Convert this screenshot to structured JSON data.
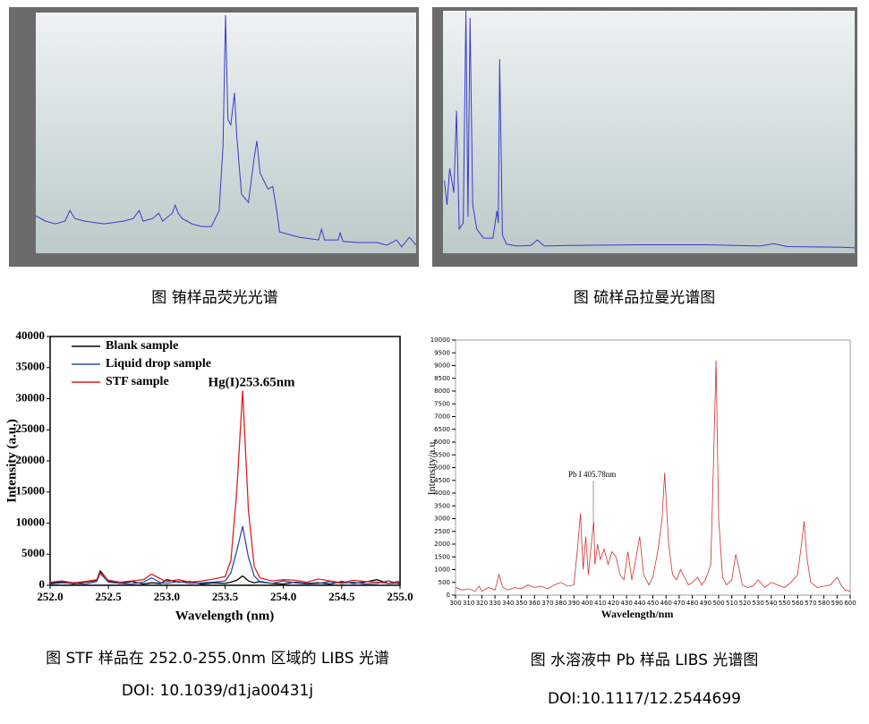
{
  "chart_data": [
    {
      "type": "line",
      "caption": "图 铕样品荧光光谱",
      "x": [
        500,
        600,
        700,
        800,
        850,
        900,
        1000,
        1200,
        1400,
        1500,
        1560,
        1600,
        1700,
        1760,
        1800,
        1900,
        1930,
        1960,
        2000,
        2100,
        2200,
        2300,
        2380,
        2420,
        2445,
        2470,
        2500,
        2537,
        2560,
        2610,
        2680,
        2740,
        2767,
        2800,
        2880,
        2930,
        2970,
        3000,
        3200,
        3400,
        3430,
        3460,
        3600,
        3620,
        3650,
        3800,
        4000,
        4100,
        4200,
        4250,
        4330,
        4400
      ],
      "series": [
        {
          "color": "#3a3acc",
          "values": [
            7000,
            6000,
            5500,
            6000,
            8000,
            6500,
            6000,
            5500,
            6000,
            6500,
            8000,
            6000,
            6500,
            7500,
            6000,
            7500,
            9000,
            7500,
            6500,
            5500,
            5000,
            5000,
            8000,
            20000,
            44500,
            25000,
            24000,
            30000,
            22000,
            11000,
            9500,
            18000,
            21000,
            15000,
            12000,
            12500,
            8000,
            4000,
            3000,
            2500,
            4500,
            2500,
            2500,
            3800,
            2200,
            2000,
            2000,
            1500,
            2500,
            1200,
            3000,
            1500
          ]
        }
      ],
      "xlim": [
        500,
        4400
      ],
      "ylim": [
        0,
        45000
      ]
    },
    {
      "type": "line",
      "caption": "图 硫样品拉曼光谱图",
      "x": [
        60,
        80,
        100,
        130,
        150,
        170,
        200,
        220,
        235,
        250,
        270,
        300,
        350,
        420,
        450,
        460,
        470,
        490,
        520,
        600,
        700,
        750,
        800,
        1000,
        1500,
        2000,
        2400,
        2500,
        2600,
        3000,
        3100
      ],
      "series": [
        {
          "color": "#3a3acc",
          "values": [
            12000,
            8000,
            14000,
            10000,
            23500,
            4000,
            5000,
            40000,
            6000,
            38800,
            8000,
            4000,
            2500,
            2500,
            7000,
            5000,
            32000,
            3000,
            1500,
            1200,
            1300,
            2200,
            1200,
            1300,
            1400,
            1400,
            1200,
            1600,
            1100,
            1000,
            900
          ]
        }
      ],
      "xlim": [
        50,
        3100
      ],
      "ylim": [
        0,
        40000
      ]
    },
    {
      "type": "line",
      "caption": "图 STF 样品在 252.0-255.0nm 区域的 LIBS 光谱",
      "doi": "DOI: 10.1039/d1ja00431j",
      "xlabel": "Wavelength (nm)",
      "ylabel": "Intensity (a.u.)",
      "annotation": "Hg(I)253.65nm",
      "legend": "upper left",
      "x": [
        252.0,
        252.1,
        252.2,
        252.3,
        252.4,
        252.43,
        252.5,
        252.6,
        252.7,
        252.8,
        252.87,
        252.95,
        253.0,
        253.1,
        253.2,
        253.3,
        253.4,
        253.5,
        253.55,
        253.6,
        253.65,
        253.7,
        253.75,
        253.8,
        253.9,
        254.0,
        254.1,
        254.2,
        254.3,
        254.4,
        254.5,
        254.6,
        254.7,
        254.8,
        254.9,
        255.0
      ],
      "series": [
        {
          "name": "Blank sample",
          "color": "#000000",
          "values": [
            300,
            600,
            200,
            500,
            800,
            2300,
            700,
            300,
            600,
            200,
            400,
            300,
            900,
            500,
            600,
            200,
            400,
            300,
            500,
            800,
            1500,
            700,
            400,
            600,
            300,
            200,
            500,
            300,
            400,
            200,
            600,
            300,
            500,
            900,
            300,
            400
          ]
        },
        {
          "name": "Liquid drop sample",
          "color": "#2a4fa8",
          "values": [
            200,
            400,
            300,
            200,
            600,
            1900,
            500,
            300,
            200,
            500,
            1200,
            400,
            300,
            600,
            300,
            400,
            500,
            700,
            2000,
            5500,
            9500,
            4500,
            1500,
            500,
            300,
            700,
            400,
            200,
            300,
            600,
            300,
            500,
            200,
            300,
            700,
            200
          ]
        },
        {
          "name": "STF sample",
          "color": "#e02020",
          "values": [
            500,
            700,
            400,
            600,
            900,
            2000,
            800,
            500,
            700,
            900,
            1800,
            1000,
            600,
            900,
            500,
            700,
            1000,
            1400,
            4000,
            15000,
            31300,
            12000,
            3000,
            1200,
            700,
            900,
            800,
            500,
            1000,
            700,
            400,
            800,
            600,
            500,
            300,
            700
          ]
        }
      ],
      "xlim": [
        252,
        255
      ],
      "ylim": [
        0,
        40000
      ],
      "xticks": [
        {
          "value": 252,
          "label": "252.0"
        },
        252.5,
        {
          "value": 253,
          "label": "253.0"
        },
        253.5,
        {
          "value": 254,
          "label": "254.0"
        },
        254.5,
        {
          "value": 255,
          "label": "255.0"
        }
      ],
      "yticks": [
        0,
        5000,
        10000,
        15000,
        20000,
        25000,
        30000,
        35000,
        40000
      ]
    },
    {
      "type": "line",
      "caption": "图 水溶液中 Pb 样品 LIBS 光谱图",
      "doi": "DOI:10.1117/12.2544699",
      "xlabel": "Wavelength/nm",
      "ylabel": "Intensity/a.u.",
      "annotation": "Pb I 405.78nm",
      "x": [
        300,
        305,
        310,
        315,
        318,
        320,
        325,
        330,
        333,
        336,
        340,
        345,
        350,
        355,
        360,
        365,
        370,
        375,
        380,
        385,
        390,
        393,
        395,
        397,
        399,
        401,
        403,
        405,
        406,
        408,
        410,
        413,
        416,
        419,
        422,
        425,
        428,
        431,
        434,
        437,
        440,
        443,
        447,
        450,
        454,
        457,
        459,
        462,
        465,
        468,
        471,
        474,
        477,
        480,
        484,
        487,
        490,
        494,
        496,
        498,
        500,
        503,
        506,
        510,
        513,
        515,
        518,
        522,
        526,
        530,
        535,
        540,
        545,
        550,
        555,
        560,
        563,
        565,
        567,
        570,
        575,
        580,
        585,
        590,
        593,
        596,
        600
      ],
      "series": [
        {
          "color": "#d03030",
          "values": [
            300,
            200,
            250,
            150,
            350,
            150,
            300,
            200,
            800,
            300,
            200,
            300,
            250,
            400,
            300,
            350,
            250,
            400,
            500,
            350,
            400,
            2000,
            3200,
            1000,
            2300,
            800,
            1900,
            2900,
            1200,
            2000,
            1400,
            1800,
            1200,
            1700,
            1500,
            800,
            600,
            1700,
            600,
            1400,
            2300,
            800,
            400,
            700,
            1800,
            3000,
            4800,
            2000,
            800,
            600,
            1000,
            700,
            400,
            500,
            700,
            400,
            600,
            1200,
            5000,
            9200,
            3000,
            700,
            400,
            600,
            1600,
            1200,
            400,
            300,
            350,
            600,
            300,
            500,
            400,
            300,
            500,
            800,
            2000,
            2900,
            1500,
            500,
            300,
            350,
            400,
            700,
            400,
            200,
            150
          ]
        }
      ],
      "xlim": [
        300,
        600
      ],
      "ylim": [
        0,
        10000
      ],
      "xticks": [
        300,
        310,
        320,
        330,
        340,
        350,
        360,
        370,
        380,
        390,
        400,
        410,
        420,
        430,
        440,
        450,
        460,
        470,
        480,
        490,
        500,
        510,
        520,
        530,
        540,
        550,
        560,
        570,
        580,
        590,
        600
      ],
      "yticks": [
        0,
        500,
        1000,
        1500,
        2000,
        2500,
        3000,
        3500,
        4000,
        4500,
        5000,
        5500,
        6000,
        6500,
        7000,
        7500,
        8000,
        8500,
        9000,
        9500,
        10000
      ]
    }
  ]
}
